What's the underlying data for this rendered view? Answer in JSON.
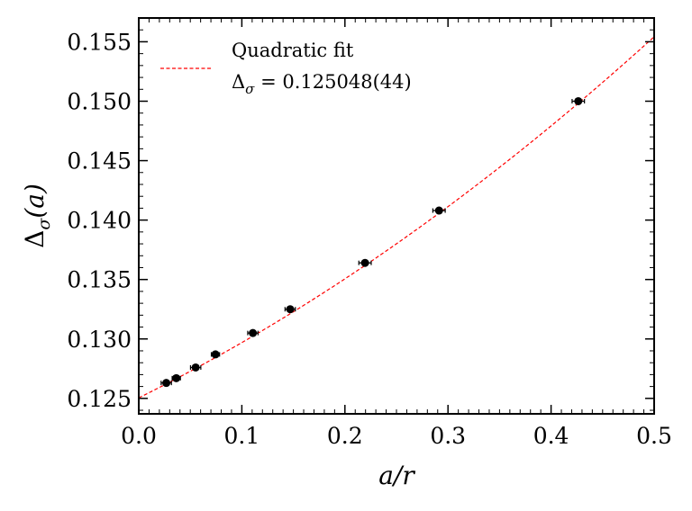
{
  "chart_data": {
    "type": "scatter",
    "xlabel": "a/r",
    "ylabel": "Δσ(a)",
    "xlim": [
      0.0,
      0.5
    ],
    "ylim": [
      0.1237,
      0.157
    ],
    "x_ticks": [
      0.0,
      0.1,
      0.2,
      0.3,
      0.4,
      0.5
    ],
    "x_tick_labels": [
      "0.0",
      "0.1",
      "0.2",
      "0.3",
      "0.4",
      "0.5"
    ],
    "y_ticks": [
      0.125,
      0.13,
      0.135,
      0.14,
      0.145,
      0.15,
      0.155
    ],
    "y_tick_labels": [
      "0.125",
      "0.130",
      "0.135",
      "0.140",
      "0.145",
      "0.150",
      "0.155"
    ],
    "grid": false,
    "legend_position": "top-left",
    "series": [
      {
        "kind": "points",
        "x": [
          0.0267,
          0.0364,
          0.0552,
          0.0744,
          0.1107,
          0.1469,
          0.2195,
          0.2913,
          0.4264
        ],
        "y": [
          0.1263,
          0.1267,
          0.1276,
          0.1287,
          0.1305,
          0.1325,
          0.1364,
          0.1408,
          0.15
        ],
        "x_err": [
          0.005,
          0.004,
          0.005,
          0.004,
          0.005,
          0.005,
          0.006,
          0.006,
          0.006
        ],
        "color": "#000000"
      },
      {
        "kind": "fit",
        "name": "Quadratic fit",
        "model": "quadratic",
        "coefficients": [
          0.125048,
          0.0429,
          0.0357
        ],
        "color": "#ff0000"
      }
    ],
    "legend": {
      "line1": "Quadratic fit",
      "line2_prefix": "Δ",
      "line2_sub": "σ",
      "line2_value": " = 0.125048(44)"
    }
  }
}
